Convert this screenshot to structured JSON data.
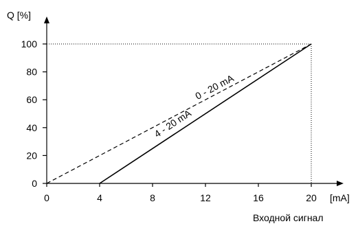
{
  "chart_data": {
    "type": "line",
    "ylabel": "Q [%]",
    "xlabel": "[mA]",
    "caption": "Входной сигнал",
    "xlim": [
      0,
      20
    ],
    "ylim": [
      0,
      100
    ],
    "x_ticks": [
      0,
      4,
      8,
      12,
      16,
      20
    ],
    "y_ticks": [
      0,
      20,
      40,
      60,
      80,
      100
    ],
    "grid": false,
    "reference_lines": {
      "x": 20,
      "y": 100,
      "style": "dotted"
    },
    "series": [
      {
        "name": "0 - 20 mA",
        "style": "dashed",
        "color": "#000000",
        "x": [
          0,
          20
        ],
        "y": [
          0,
          100
        ]
      },
      {
        "name": "4 - 20 mA",
        "style": "solid",
        "color": "#000000",
        "x": [
          4,
          20
        ],
        "y": [
          0,
          100
        ]
      }
    ]
  }
}
